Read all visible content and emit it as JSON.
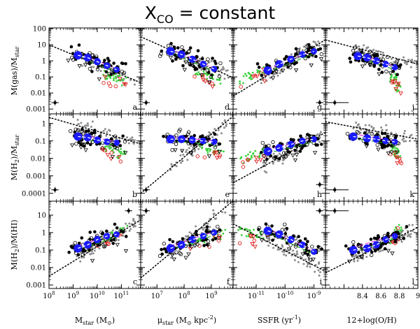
{
  "figure": {
    "title_main": "X",
    "title_sub": "CO",
    "title_rest": " = constant"
  },
  "colors": {
    "black": "#000000",
    "gray": "#8c8c8c",
    "green": "#3ccf3c",
    "red": "#e02020",
    "blue": "#1a1aff",
    "white_dashed": "#ffffff",
    "magenta": "#e040e0",
    "dkgreen": "#1f9e1f"
  },
  "rows": [
    {
      "ylabel_parts": [
        "M(gas)/M",
        "star",
        ""
      ],
      "ylim": [
        -3.3,
        2.05
      ],
      "ticks": [
        {
          "v": 2,
          "t": "100"
        },
        {
          "v": 1,
          "t": "10"
        },
        {
          "v": 0,
          "t": "1"
        },
        {
          "v": -1,
          "t": "0.1"
        },
        {
          "v": -2,
          "t": "0.01"
        },
        {
          "v": -3,
          "t": "0.001"
        }
      ]
    },
    {
      "ylabel_parts": [
        "M(H",
        "2",
        ")/M",
        "star"
      ],
      "ylim": [
        -4.45,
        0.55
      ],
      "ticks": [
        {
          "v": 0,
          "t": "1"
        },
        {
          "v": -1,
          "t": "0.1"
        },
        {
          "v": -2,
          "t": "0.01"
        },
        {
          "v": -3,
          "t": "0.001"
        },
        {
          "v": -4,
          "t": "0.0001"
        }
      ]
    },
    {
      "ylabel_parts": [
        "M(H",
        "2",
        ")/M(HI)",
        ""
      ],
      "ylim": [
        -3.2,
        1.8
      ],
      "ticks": [
        {
          "v": 1,
          "t": "10"
        },
        {
          "v": 0,
          "t": "1"
        },
        {
          "v": -1,
          "t": "0.1"
        },
        {
          "v": -2,
          "t": "0.01"
        },
        {
          "v": -3,
          "t": "0.001"
        }
      ]
    }
  ],
  "cols": [
    {
      "xlabel": "M_star (M_sun)",
      "xlim": [
        8,
        11.8
      ],
      "ticks": [
        {
          "v": 8,
          "t": "10",
          "e": "8"
        },
        {
          "v": 9,
          "t": "10",
          "e": "9"
        },
        {
          "v": 10,
          "t": "10",
          "e": "10"
        },
        {
          "v": 11,
          "t": "10",
          "e": "11"
        }
      ]
    },
    {
      "xlabel": "mu_star (M_sun kpc^-2)",
      "xlim": [
        6.4,
        9.8
      ],
      "ticks": [
        {
          "v": 7,
          "t": "10",
          "e": "7"
        },
        {
          "v": 8,
          "t": "10",
          "e": "8"
        },
        {
          "v": 9,
          "t": "10",
          "e": "9"
        }
      ]
    },
    {
      "xlabel": "SSFR (yr^-1)",
      "xlim": [
        -11.8,
        -8.6
      ],
      "ticks": [
        {
          "v": -11,
          "t": "10",
          "e": "-11"
        },
        {
          "v": -10,
          "t": "10",
          "e": "-10"
        },
        {
          "v": -9,
          "t": "10",
          "e": "-9"
        }
      ]
    },
    {
      "xlabel": "12+log(O/H)",
      "xlim": [
        8.0,
        9.0
      ],
      "ticks": [
        {
          "v": 8.4,
          "t": "8.4"
        },
        {
          "v": 8.6,
          "t": "8.6"
        },
        {
          "v": 8.8,
          "t": "8.8"
        },
        {
          "v": 9,
          "t": "9"
        }
      ]
    }
  ],
  "xlabels": [
    {
      "main": "M",
      "sub": "star",
      "rest": "  (M",
      "sub2": "⊙",
      "tail": ")"
    },
    {
      "main": "μ",
      "sub": "star",
      "rest": "  (M",
      "sub2": "⊙",
      "tail": " kpc",
      "sup": "-2",
      "end": ")"
    },
    {
      "main": "SSFR  (yr",
      "sup": "-1",
      "tail": ")"
    },
    {
      "main": "12+log(O/H)"
    }
  ],
  "chart_data": {
    "type": "scatter",
    "title": "X_CO = constant",
    "panels": [
      {
        "letter": "a",
        "row": 0,
        "col": 0,
        "fit": {
          "x0": 8.0,
          "y0": 1.0,
          "slope": -0.62
        },
        "blue_bins": [
          {
            "x": 9.2,
            "y": 0.35
          },
          {
            "x": 9.6,
            "y": 0.2
          },
          {
            "x": 10.0,
            "y": -0.05
          },
          {
            "x": 10.4,
            "y": -0.3
          },
          {
            "x": 10.8,
            "y": -0.55
          }
        ],
        "colored": {
          "x": [
            10.3,
            11.1
          ],
          "y": [
            -0.8,
            -1.3
          ]
        },
        "errbar": {
          "x": 8.25,
          "y": -2.6
        }
      },
      {
        "letter": "b",
        "row": 1,
        "col": 0,
        "fit": {
          "x0": 8.0,
          "y0": 0.35,
          "slope": -0.4
        },
        "blue_bins": [
          {
            "x": 9.2,
            "y": -0.75
          },
          {
            "x": 9.6,
            "y": -0.8
          },
          {
            "x": 10.0,
            "y": -0.95
          },
          {
            "x": 10.4,
            "y": -1.05
          },
          {
            "x": 10.8,
            "y": -1.1
          }
        ],
        "colored": {
          "x": [
            10.3,
            11.1
          ],
          "y": [
            -1.3,
            -1.8
          ]
        },
        "errbar": {
          "x": 8.25,
          "y": -3.8
        }
      },
      {
        "letter": "c",
        "row": 2,
        "col": 0,
        "fit": {
          "x0": 8.0,
          "y0": -2.5,
          "slope": 0.85
        },
        "blue_bins": [
          {
            "x": 9.2,
            "y": -0.9
          },
          {
            "x": 9.6,
            "y": -0.7
          },
          {
            "x": 10.0,
            "y": -0.4
          },
          {
            "x": 10.4,
            "y": -0.2
          },
          {
            "x": 10.8,
            "y": -0.1
          }
        ],
        "colored": {
          "x": [
            10.0,
            11.2
          ],
          "y": [
            -0.5,
            0.2
          ]
        },
        "errbar": {
          "x": 11.3,
          "y": 1.25
        }
      },
      {
        "letter": "d",
        "row": 0,
        "col": 1,
        "fit": {
          "x0": 6.4,
          "y0": 1.5,
          "slope": -0.75
        },
        "blue_bins": [
          {
            "x": 7.5,
            "y": 0.6
          },
          {
            "x": 7.9,
            "y": 0.4
          },
          {
            "x": 8.3,
            "y": 0.1
          },
          {
            "x": 8.7,
            "y": -0.2
          },
          {
            "x": 9.1,
            "y": -0.5
          }
        ],
        "colored": {
          "x": [
            8.4,
            9.4
          ],
          "y": [
            -0.6,
            -1.3
          ]
        },
        "errbar": {
          "x": 6.6,
          "y": -2.6
        }
      },
      {
        "letter": "e",
        "row": 1,
        "col": 1,
        "fit": {
          "x0": 6.4,
          "y0": -4.0,
          "slope": 1.3
        },
        "blue_bins": [
          {
            "x": 7.5,
            "y": -0.9
          },
          {
            "x": 7.9,
            "y": -0.9
          },
          {
            "x": 8.3,
            "y": -0.95
          },
          {
            "x": 8.7,
            "y": -1.0
          },
          {
            "x": 9.1,
            "y": -1.05
          }
        ],
        "colored": {
          "x": [
            8.4,
            9.4
          ],
          "y": [
            -1.2,
            -1.7
          ]
        },
        "errbar": {
          "x": 6.6,
          "y": -3.8
        }
      },
      {
        "letter": "f",
        "row": 2,
        "col": 1,
        "fit": {
          "x0": 6.4,
          "y0": -2.6,
          "slope": 1.3
        },
        "blue_bins": [
          {
            "x": 7.5,
            "y": -0.9
          },
          {
            "x": 7.9,
            "y": -0.7
          },
          {
            "x": 8.3,
            "y": -0.4
          },
          {
            "x": 8.7,
            "y": -0.2
          },
          {
            "x": 9.1,
            "y": 0.0
          }
        ],
        "colored": {
          "x": [
            8.2,
            9.4
          ],
          "y": [
            -0.6,
            0.0
          ]
        },
        "errbar": {
          "x": 6.6,
          "y": 1.25
        }
      },
      {
        "letter": "g",
        "row": 0,
        "col": 2,
        "fit": {
          "x0": -11.8,
          "y0": -2.2,
          "slope": 1.1
        },
        "blue_bins": [
          {
            "x": -10.6,
            "y": -0.6
          },
          {
            "x": -10.2,
            "y": -0.2
          },
          {
            "x": -9.8,
            "y": 0.1
          },
          {
            "x": -9.4,
            "y": 0.4
          },
          {
            "x": -9.0,
            "y": 0.6
          }
        ],
        "colored": {
          "x": [
            -11.6,
            -10.6
          ],
          "y": [
            -1.3,
            -0.4
          ]
        },
        "errbar": {
          "x": -8.8,
          "y": -2.6
        }
      },
      {
        "letter": "h",
        "row": 1,
        "col": 2,
        "fit": {
          "x0": -11.8,
          "y0": -3.4,
          "slope": 0.9
        },
        "blue_bins": [
          {
            "x": -10.6,
            "y": -1.6
          },
          {
            "x": -10.2,
            "y": -1.4
          },
          {
            "x": -9.8,
            "y": -1.2
          },
          {
            "x": -9.4,
            "y": -1.0
          },
          {
            "x": -9.0,
            "y": -0.9
          }
        ],
        "colored": {
          "x": [
            -11.6,
            -10.6
          ],
          "y": [
            -2.1,
            -1.5
          ]
        },
        "errbar": {
          "x": -8.8,
          "y": -3.5
        }
      },
      {
        "letter": "i",
        "row": 2,
        "col": 2,
        "fit": {
          "x0": -11.8,
          "y0": 0.5,
          "slope": -0.85
        },
        "blue_bins": [
          {
            "x": -10.6,
            "y": 0.1
          },
          {
            "x": -10.2,
            "y": -0.1
          },
          {
            "x": -9.8,
            "y": -0.4
          },
          {
            "x": -9.4,
            "y": -0.7
          },
          {
            "x": -9.0,
            "y": -1.1
          }
        ],
        "colored": {
          "x": [
            -11.6,
            -10.6
          ],
          "y": [
            0.1,
            -0.2
          ]
        },
        "errbar": {
          "x": -8.8,
          "y": 1.25
        }
      },
      {
        "letter": "j",
        "row": 0,
        "col": 3,
        "fit": {
          "x0": 8.0,
          "y0": 1.3,
          "slope": -1.5
        },
        "blue_bins": [
          {
            "x": 8.35,
            "y": 0.3
          },
          {
            "x": 8.45,
            "y": 0.2
          },
          {
            "x": 8.55,
            "y": 0.0
          },
          {
            "x": 8.65,
            "y": -0.2
          },
          {
            "x": 8.75,
            "y": -0.4
          }
        ],
        "colored": {
          "x": [
            8.72,
            8.8
          ],
          "y": [
            -0.8,
            -1.8
          ]
        },
        "errbar": {
          "x": 8.1,
          "y": -2.6
        }
      },
      {
        "letter": "k",
        "row": 1,
        "col": 3,
        "fit": {
          "x0": 8.0,
          "y0": 0.1,
          "slope": -1.0
        },
        "blue_bins": [
          {
            "x": 8.3,
            "y": -0.75
          },
          {
            "x": 8.45,
            "y": -0.85
          },
          {
            "x": 8.55,
            "y": -0.9
          },
          {
            "x": 8.65,
            "y": -1.0
          },
          {
            "x": 8.75,
            "y": -1.05
          }
        ],
        "colored": {
          "x": [
            8.72,
            8.8
          ],
          "y": [
            -1.2,
            -1.9
          ]
        },
        "errbar": {
          "x": 8.1,
          "y": -3.8
        }
      },
      {
        "letter": "l",
        "row": 2,
        "col": 3,
        "fit": {
          "x0": 8.0,
          "y0": -2.3,
          "slope": 2.6
        },
        "blue_bins": [
          {
            "x": 8.3,
            "y": -1.0
          },
          {
            "x": 8.45,
            "y": -0.9
          },
          {
            "x": 8.55,
            "y": -0.7
          },
          {
            "x": 8.65,
            "y": -0.4
          },
          {
            "x": 8.75,
            "y": -0.2
          }
        ],
        "colored": {
          "x": [
            8.72,
            8.8
          ],
          "y": [
            -0.5,
            0.3
          ]
        },
        "errbar": {
          "x": 8.1,
          "y": 1.25
        }
      }
    ],
    "legend": "none"
  }
}
